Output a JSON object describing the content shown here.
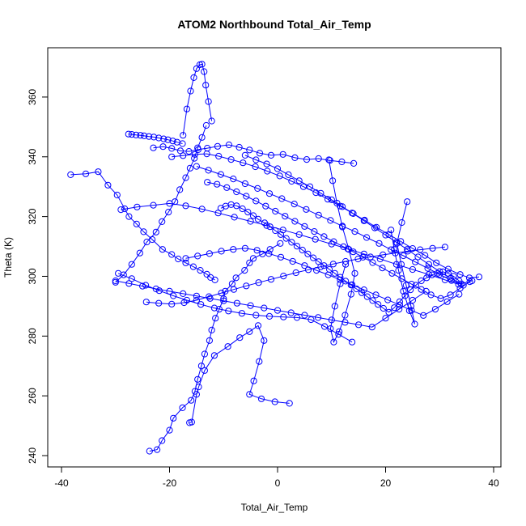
{
  "chart_data": {
    "type": "line",
    "title": "ATOM2 Northbound Total_Air_Temp",
    "xlabel": "Total_Air_Temp",
    "ylabel": "Theta (K)",
    "xlim": [
      -40,
      40
    ],
    "ylim": [
      240,
      370
    ],
    "x_ticks": [
      -40,
      -20,
      0,
      20,
      40
    ],
    "y_ticks": [
      240,
      260,
      280,
      300,
      320,
      340,
      360
    ],
    "grid": false,
    "marker": "open-circle",
    "color": "#0000ff",
    "series": [
      {
        "x": [
          -23.7,
          -22.3,
          -21.4,
          -20.0,
          -19.3,
          -17.6,
          -16.0,
          -15.3,
          -14.8,
          -14.1,
          -13.5,
          -12.6,
          -12.2,
          -11.5,
          -10.8,
          -10.0,
          -9.7,
          -8.4,
          -7.7,
          -6.1,
          -5.2,
          -4.5,
          -2.8,
          -1.4,
          0.5
        ],
        "y": [
          241.5,
          242.0,
          245.0,
          248.5,
          252.5,
          256.0,
          258.5,
          261.5,
          265.5,
          270.0,
          274.0,
          278.5,
          282.0,
          286.0,
          289.0,
          292.5,
          295.0,
          297.5,
          299.5,
          302.0,
          304.5,
          306.0,
          307.5,
          309.0,
          311.0
        ]
      },
      {
        "x": [
          -16.3,
          -15.9,
          -15.0,
          -14.6,
          -13.5,
          -11.7,
          -9.2,
          -7.0,
          -5.2,
          -3.6,
          -2.5,
          -3.4,
          -4.4,
          -5.2,
          -3.0,
          -0.5,
          2.2
        ],
        "y": [
          251.0,
          251.2,
          260.5,
          263.0,
          268.5,
          273.5,
          276.5,
          279.5,
          281.5,
          283.5,
          278.5,
          271.5,
          265.0,
          260.5,
          259.0,
          258.0,
          257.5
        ]
      },
      {
        "x": [
          -38.3,
          -35.5,
          -33.2,
          -31.4,
          -29.7,
          -28.3,
          -27.5,
          -26.1,
          -24.8,
          -23.2,
          -21.3,
          -19.6,
          -18.4,
          -17.0,
          -15.6,
          -14.3,
          -13.1,
          -12.4,
          -11.6
        ],
        "y": [
          334.0,
          334.3,
          335.0,
          330.5,
          327.2,
          322.6,
          320.0,
          317.5,
          314.9,
          312.3,
          309.0,
          307.3,
          305.8,
          304.5,
          303.2,
          302.0,
          300.7,
          299.6,
          298.8
        ]
      },
      {
        "x": [
          -30.0,
          -28.5,
          -27.0,
          -25.5,
          -24.2,
          -22.5,
          -21.4,
          -20.2,
          -19.0,
          -18.1,
          -17.0,
          -16.2,
          -15.4,
          -14.8,
          -14.0,
          -13.2
        ],
        "y": [
          298.0,
          300.5,
          304.0,
          307.8,
          311.5,
          314.8,
          318.3,
          321.5,
          325.0,
          329.0,
          333.0,
          336.2,
          339.5,
          343.0,
          346.5,
          350.5
        ]
      },
      {
        "x": [
          -17.5,
          -16.8,
          -16.1,
          -15.5,
          -15.0,
          -14.4,
          -14.0,
          -13.6,
          -13.3,
          -12.8,
          -12.2
        ],
        "y": [
          347.2,
          356.0,
          362.0,
          366.5,
          369.5,
          370.8,
          371.0,
          368.5,
          364.0,
          358.5,
          352.0
        ]
      },
      {
        "x": [
          -27.6,
          -27.0,
          -26.2,
          -25.4,
          -24.7,
          -23.8,
          -22.9,
          -22.0,
          -21.1,
          -20.3,
          -19.4,
          -18.6,
          -17.6
        ],
        "y": [
          347.6,
          347.5,
          347.3,
          347.2,
          347.0,
          346.8,
          346.6,
          346.3,
          346.0,
          345.7,
          345.3,
          344.9,
          344.4
        ]
      },
      {
        "x": [
          -23.0,
          -21.2,
          -19.6,
          -18.0,
          -16.4,
          -14.7,
          -13.0,
          -11.1,
          -9.0,
          -7.1,
          -5.2,
          -3.3,
          -1.2,
          1.0,
          3.2,
          5.4,
          7.6,
          9.7,
          11.9,
          14.1
        ],
        "y": [
          343.0,
          343.4,
          342.8,
          342.0,
          341.8,
          342.4,
          342.9,
          343.5,
          344.0,
          343.2,
          342.3,
          341.2,
          340.5,
          340.8,
          339.7,
          339.1,
          339.4,
          338.8,
          338.3,
          337.8
        ]
      },
      {
        "x": [
          -19.6,
          -17.5,
          -15.3,
          -13.1,
          -10.9,
          -8.6,
          -6.4,
          -4.1,
          -1.9,
          0.4,
          2.6,
          4.8,
          7.1,
          9.3,
          11.6,
          13.8,
          16.1,
          18.3,
          20.6,
          22.8,
          25.0,
          27.3,
          29.4,
          31.6,
          33.8,
          35.5,
          37.3
        ],
        "y": [
          340.0,
          340.4,
          340.8,
          341.0,
          340.2,
          339.1,
          338.0,
          336.7,
          335.2,
          333.6,
          331.8,
          330.0,
          328.0,
          325.8,
          323.5,
          321.2,
          318.8,
          316.4,
          314.0,
          311.7,
          309.3,
          307.0,
          304.5,
          302.4,
          300.6,
          299.5,
          299.8
        ]
      },
      {
        "x": [
          -15.0,
          -12.8,
          -10.5,
          -8.2,
          -6.0,
          -3.7,
          -1.5,
          0.8,
          3.1,
          5.3,
          7.6,
          9.8,
          12.0,
          14.3,
          16.5,
          18.8,
          21.0,
          23.3,
          25.5,
          27.8,
          30.0,
          32.2,
          34.4
        ],
        "y": [
          336.8,
          335.5,
          334.1,
          332.6,
          331.0,
          329.4,
          327.7,
          326.0,
          324.2,
          322.4,
          320.5,
          318.7,
          316.8,
          315.0,
          313.0,
          311.0,
          308.9,
          306.9,
          304.8,
          302.7,
          300.6,
          298.6,
          297.0
        ]
      },
      {
        "x": [
          -29.0,
          -26.0,
          -23.0,
          -20.0,
          -17.0,
          -14.0,
          -11.0,
          -8.0,
          -5.0,
          -2.0,
          1.0,
          4.0,
          7.0,
          10.0,
          13.0,
          16.0,
          19.0,
          22.0,
          25.0,
          28.0,
          31.0,
          33.5
        ],
        "y": [
          322.3,
          323.2,
          323.8,
          324.4,
          323.6,
          322.5,
          321.2,
          319.8,
          318.4,
          317.0,
          315.5,
          314.0,
          312.4,
          310.8,
          309.2,
          307.5,
          305.8,
          304.0,
          302.3,
          300.6,
          298.8,
          297.3
        ]
      },
      {
        "x": [
          -17.0,
          -14.8,
          -12.6,
          -10.4,
          -8.2,
          -6.0,
          -3.8,
          -1.6,
          0.6,
          2.8,
          5.0,
          7.2,
          9.4,
          11.6,
          13.8,
          16.0,
          18.2,
          20.4,
          22.6,
          24.8,
          27.0,
          29.2,
          31.4,
          33.6
        ],
        "y": [
          306.0,
          306.8,
          307.6,
          308.4,
          309.0,
          309.4,
          308.7,
          307.6,
          306.4,
          305.0,
          303.6,
          302.0,
          300.5,
          298.8,
          297.2,
          295.5,
          293.8,
          292.1,
          290.4,
          288.6,
          286.9,
          289.0,
          291.5,
          294.0
        ]
      },
      {
        "x": [
          -30.0,
          -27.5,
          -25.0,
          -22.5,
          -20.0,
          -17.5,
          -15.0,
          -12.5,
          -10.0,
          -7.5,
          -5.0,
          -2.5,
          0.0,
          2.5,
          5.0,
          7.5,
          10.0,
          12.5,
          15.0,
          17.5,
          20.0,
          22.5,
          25.0,
          27.5
        ],
        "y": [
          298.5,
          297.6,
          296.7,
          295.8,
          295.0,
          294.2,
          293.4,
          292.6,
          291.8,
          291.0,
          290.2,
          289.4,
          288.6,
          287.8,
          287.0,
          286.2,
          285.4,
          284.6,
          283.8,
          283.0,
          286.0,
          289.0,
          292.0,
          295.0
        ]
      },
      {
        "x": [
          -29.5,
          -27.0,
          -24.4,
          -21.9,
          -19.3,
          -16.8,
          -14.2,
          -11.7,
          -9.1,
          -6.6,
          -4.0,
          -1.5,
          1.1,
          3.6,
          6.2,
          8.7,
          11.3,
          13.8
        ],
        "y": [
          301.0,
          299.2,
          297.0,
          295.2,
          293.5,
          292.0,
          290.6,
          289.4,
          288.4,
          287.6,
          287.0,
          286.6,
          286.4,
          286.2,
          285.5,
          283.2,
          280.6,
          278.0
        ]
      },
      {
        "x": [
          -24.3,
          -22.0,
          -19.6,
          -17.3,
          -15.0,
          -12.7,
          -10.4,
          -8.1,
          -5.8,
          -3.5,
          -1.2,
          1.1,
          3.4,
          5.7,
          8.0,
          10.3,
          12.6,
          14.9,
          17.2,
          19.5,
          21.8,
          24.1,
          26.4,
          28.7,
          31.0
        ],
        "y": [
          291.4,
          291.0,
          290.7,
          291.2,
          292.0,
          293.2,
          294.4,
          295.6,
          296.8,
          297.9,
          299.0,
          300.1,
          301.2,
          302.2,
          303.2,
          304.1,
          305.0,
          305.8,
          306.5,
          307.2,
          307.8,
          308.4,
          308.9,
          309.4,
          309.8
        ]
      },
      {
        "x": [
          -10.5,
          -9.6,
          -8.6,
          -7.6,
          -6.5,
          -5.5,
          -4.5,
          -3.6,
          -2.4,
          -1.4,
          -0.4,
          0.6,
          1.6,
          2.6,
          3.6,
          4.6,
          5.6,
          6.6,
          7.6,
          8.6,
          9.6,
          10.6,
          11.6,
          12.6,
          13.6,
          14.6,
          15.6,
          16.6,
          17.6,
          18.6,
          19.6,
          20.6,
          21.6,
          22.6,
          23.6,
          24.6,
          25.6,
          26.6,
          27.6,
          28.6,
          29.6,
          30.6,
          31.6,
          32.6,
          33.6
        ],
        "y": [
          322.8,
          323.5,
          324.0,
          323.6,
          322.6,
          321.5,
          320.3,
          319.1,
          317.9,
          316.6,
          315.3,
          314.0,
          312.7,
          311.4,
          310.1,
          308.8,
          307.5,
          306.2,
          304.9,
          303.6,
          302.3,
          301.0,
          299.7,
          298.4,
          297.1,
          295.8,
          294.5,
          293.2,
          291.9,
          290.6,
          289.3,
          288.0,
          289.5,
          291.5,
          293.5,
          295.5,
          297.0,
          298.5,
          299.5,
          300.5,
          301.0,
          301.5,
          301.0,
          300.0,
          298.5
        ]
      },
      {
        "x": [
          -6.0,
          -4.0,
          -2.0,
          0.0,
          2.0,
          4.0,
          6.0,
          8.0,
          10.0,
          12.0,
          14.0,
          16.0,
          18.0,
          20.0,
          22.0,
          24.0,
          26.0,
          28.0,
          30.0,
          32.0,
          34.0,
          36.0
        ],
        "y": [
          340.5,
          339.0,
          337.6,
          336.0,
          334.0,
          332.0,
          330.0,
          327.8,
          325.6,
          323.3,
          321.0,
          318.6,
          316.2,
          313.8,
          311.4,
          309.0,
          306.5,
          304.0,
          301.6,
          299.3,
          297.5,
          298.5
        ]
      },
      {
        "x": [
          9.5,
          10.2,
          11.0,
          12.0,
          13.2,
          14.3,
          13.6,
          12.5,
          11.4,
          10.4,
          9.8,
          10.6,
          11.6,
          12.6
        ],
        "y": [
          339.0,
          332.0,
          324.5,
          316.5,
          309.0,
          301.0,
          294.0,
          287.0,
          281.5,
          278.0,
          282.5,
          290.0,
          297.5,
          304.0
        ]
      },
      {
        "x": [
          21.0,
          21.6,
          22.4,
          23.3,
          24.4,
          25.4,
          24.7,
          23.8,
          22.9,
          22.1,
          23.0,
          24.0
        ],
        "y": [
          315.5,
          309.0,
          302.0,
          295.0,
          288.5,
          284.0,
          290.0,
          297.0,
          304.0,
          311.0,
          318.0,
          325.0
        ]
      },
      {
        "x": [
          -13.0,
          -11.2,
          -9.4,
          -7.6,
          -5.8,
          -4.0,
          -2.2,
          -0.4,
          1.4,
          3.2,
          5.0,
          6.8,
          8.6,
          10.4,
          12.2,
          14.0,
          15.8,
          17.6,
          19.4,
          21.2,
          23.0,
          24.8,
          26.6,
          28.4,
          30.2,
          32.0,
          33.8,
          35.6
        ],
        "y": [
          331.5,
          330.8,
          329.7,
          328.3,
          326.8,
          325.2,
          323.5,
          321.8,
          320.1,
          318.4,
          316.7,
          315.0,
          313.3,
          311.6,
          309.9,
          308.2,
          306.4,
          304.6,
          302.8,
          301.0,
          299.2,
          297.4,
          295.6,
          293.8,
          292.6,
          293.8,
          296.0,
          298.2
        ]
      }
    ]
  }
}
